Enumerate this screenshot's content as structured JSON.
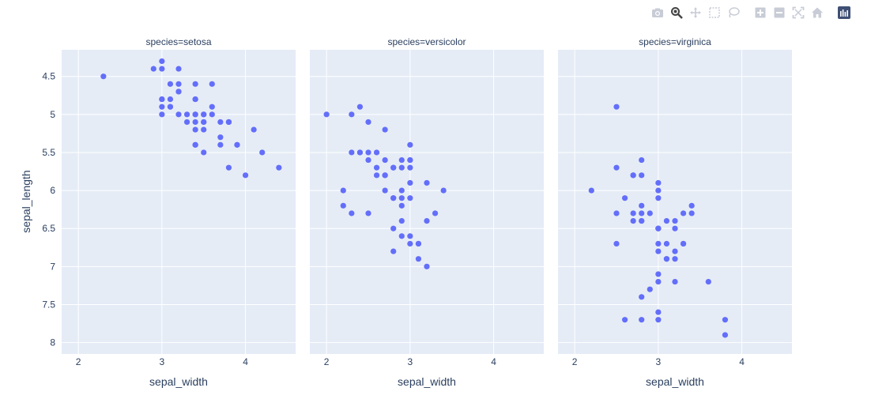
{
  "modebar": {
    "buttons": [
      {
        "name": "download-plot-as-png-icon"
      },
      {
        "name": "zoom-icon"
      },
      {
        "name": "pan-icon"
      },
      {
        "name": "box-select-icon"
      },
      {
        "name": "lasso-select-icon"
      },
      {
        "name": "zoom-in-icon"
      },
      {
        "name": "zoom-out-icon"
      },
      {
        "name": "autoscale-icon"
      },
      {
        "name": "reset-axes-icon"
      },
      {
        "name": "plotly-logo-icon"
      }
    ]
  },
  "chart_data": {
    "type": "scatter",
    "facet": "species",
    "marker_color": "#636efa",
    "plot_bgcolor": "#e5ecf6",
    "grid": true,
    "xlabel": "sepal_width",
    "ylabel": "sepal_length",
    "xlim": [
      1.8,
      4.6
    ],
    "ylim": [
      8.15,
      4.15
    ],
    "y_reversed": true,
    "xticks": [
      "2",
      "3",
      "4"
    ],
    "xtick_values": [
      2,
      3,
      4
    ],
    "yticks": [
      "4.5",
      "5",
      "5.5",
      "6",
      "6.5",
      "7",
      "7.5",
      "8"
    ],
    "ytick_values": [
      4.5,
      5,
      5.5,
      6,
      6.5,
      7,
      7.5,
      8
    ],
    "panels": [
      {
        "title": "species=setosa",
        "points": [
          [
            3.5,
            5.1
          ],
          [
            3.0,
            4.9
          ],
          [
            3.2,
            4.7
          ],
          [
            3.1,
            4.6
          ],
          [
            3.6,
            5.0
          ],
          [
            3.9,
            5.4
          ],
          [
            3.4,
            4.6
          ],
          [
            3.4,
            5.0
          ],
          [
            2.9,
            4.4
          ],
          [
            3.1,
            4.9
          ],
          [
            3.7,
            5.4
          ],
          [
            3.4,
            4.8
          ],
          [
            3.0,
            4.8
          ],
          [
            3.0,
            4.3
          ],
          [
            4.0,
            5.8
          ],
          [
            4.4,
            5.7
          ],
          [
            3.9,
            5.4
          ],
          [
            3.5,
            5.1
          ],
          [
            3.8,
            5.7
          ],
          [
            3.8,
            5.1
          ],
          [
            3.4,
            5.4
          ],
          [
            3.7,
            5.1
          ],
          [
            3.6,
            4.6
          ],
          [
            3.3,
            5.1
          ],
          [
            3.4,
            4.8
          ],
          [
            3.0,
            5.0
          ],
          [
            3.4,
            5.0
          ],
          [
            3.5,
            5.2
          ],
          [
            3.4,
            5.2
          ],
          [
            3.2,
            4.7
          ],
          [
            3.1,
            4.8
          ],
          [
            3.4,
            5.4
          ],
          [
            4.1,
            5.2
          ],
          [
            4.2,
            5.5
          ],
          [
            3.1,
            4.9
          ],
          [
            3.2,
            5.0
          ],
          [
            3.5,
            5.5
          ],
          [
            3.6,
            4.9
          ],
          [
            3.0,
            4.4
          ],
          [
            3.4,
            5.1
          ],
          [
            3.5,
            5.0
          ],
          [
            2.3,
            4.5
          ],
          [
            3.2,
            4.4
          ],
          [
            3.5,
            5.0
          ],
          [
            3.8,
            5.1
          ],
          [
            3.0,
            4.8
          ],
          [
            3.8,
            5.1
          ],
          [
            3.2,
            4.6
          ],
          [
            3.7,
            5.3
          ],
          [
            3.3,
            5.0
          ]
        ]
      },
      {
        "title": "species=versicolor",
        "points": [
          [
            3.2,
            7.0
          ],
          [
            3.2,
            6.4
          ],
          [
            3.1,
            6.9
          ],
          [
            2.3,
            5.5
          ],
          [
            2.8,
            6.5
          ],
          [
            2.8,
            5.7
          ],
          [
            3.3,
            6.3
          ],
          [
            2.4,
            4.9
          ],
          [
            2.9,
            6.6
          ],
          [
            2.7,
            5.2
          ],
          [
            2.0,
            5.0
          ],
          [
            3.0,
            5.9
          ],
          [
            2.2,
            6.0
          ],
          [
            2.9,
            6.1
          ],
          [
            2.9,
            5.6
          ],
          [
            3.1,
            6.7
          ],
          [
            3.0,
            5.6
          ],
          [
            2.7,
            5.8
          ],
          [
            2.2,
            6.2
          ],
          [
            2.5,
            5.6
          ],
          [
            3.2,
            5.9
          ],
          [
            2.8,
            6.1
          ],
          [
            2.5,
            6.3
          ],
          [
            2.8,
            6.1
          ],
          [
            2.9,
            6.4
          ],
          [
            3.0,
            6.6
          ],
          [
            2.8,
            6.8
          ],
          [
            3.0,
            6.7
          ],
          [
            2.9,
            6.0
          ],
          [
            2.6,
            5.7
          ],
          [
            2.4,
            5.5
          ],
          [
            2.4,
            5.5
          ],
          [
            2.7,
            5.8
          ],
          [
            2.7,
            6.0
          ],
          [
            3.0,
            5.4
          ],
          [
            3.4,
            6.0
          ],
          [
            3.1,
            6.7
          ],
          [
            2.3,
            6.3
          ],
          [
            3.0,
            5.6
          ],
          [
            2.5,
            5.5
          ],
          [
            2.6,
            5.5
          ],
          [
            3.0,
            6.1
          ],
          [
            2.6,
            5.8
          ],
          [
            2.3,
            5.0
          ],
          [
            2.7,
            5.6
          ],
          [
            3.0,
            5.7
          ],
          [
            2.9,
            5.7
          ],
          [
            2.9,
            6.2
          ],
          [
            2.5,
            5.1
          ],
          [
            2.8,
            5.7
          ]
        ]
      },
      {
        "title": "species=virginica",
        "points": [
          [
            3.3,
            6.3
          ],
          [
            2.7,
            5.8
          ],
          [
            3.0,
            7.1
          ],
          [
            2.9,
            6.3
          ],
          [
            3.0,
            6.5
          ],
          [
            3.0,
            7.6
          ],
          [
            2.5,
            4.9
          ],
          [
            2.9,
            7.3
          ],
          [
            2.5,
            6.7
          ],
          [
            3.6,
            7.2
          ],
          [
            3.2,
            6.5
          ],
          [
            2.7,
            6.4
          ],
          [
            3.0,
            6.8
          ],
          [
            2.5,
            5.7
          ],
          [
            2.8,
            5.8
          ],
          [
            3.2,
            6.4
          ],
          [
            3.0,
            6.5
          ],
          [
            3.8,
            7.7
          ],
          [
            2.6,
            7.7
          ],
          [
            2.2,
            6.0
          ],
          [
            3.2,
            6.9
          ],
          [
            2.8,
            5.6
          ],
          [
            2.8,
            7.7
          ],
          [
            2.7,
            6.3
          ],
          [
            3.3,
            6.7
          ],
          [
            3.2,
            7.2
          ],
          [
            2.8,
            6.2
          ],
          [
            3.0,
            6.1
          ],
          [
            2.8,
            6.4
          ],
          [
            3.0,
            7.2
          ],
          [
            2.8,
            7.4
          ],
          [
            3.8,
            7.9
          ],
          [
            2.8,
            6.4
          ],
          [
            2.8,
            6.3
          ],
          [
            2.6,
            6.1
          ],
          [
            3.0,
            7.7
          ],
          [
            3.4,
            6.3
          ],
          [
            3.1,
            6.4
          ],
          [
            3.0,
            6.0
          ],
          [
            3.1,
            6.9
          ],
          [
            3.1,
            6.7
          ],
          [
            3.1,
            6.9
          ],
          [
            2.7,
            5.8
          ],
          [
            3.2,
            6.8
          ],
          [
            3.3,
            6.7
          ],
          [
            3.0,
            6.7
          ],
          [
            2.5,
            6.3
          ],
          [
            3.0,
            6.5
          ],
          [
            3.4,
            6.2
          ],
          [
            3.0,
            5.9
          ]
        ]
      }
    ]
  }
}
